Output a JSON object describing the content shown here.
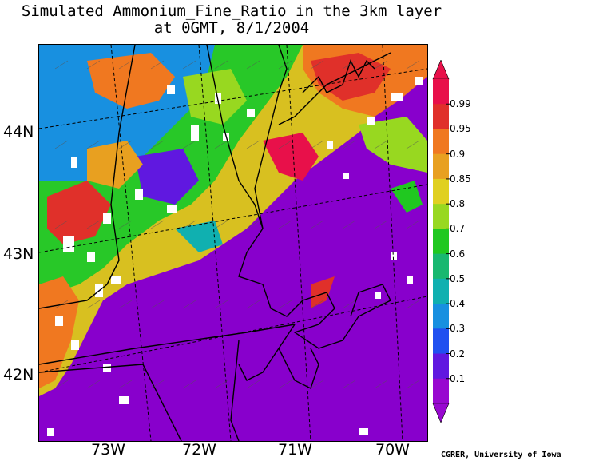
{
  "title": {
    "line1": "Simulated Ammonium_Fine_Ratio in the 3km layer",
    "line2": "at 0GMT, 8/1/2004"
  },
  "map": {
    "latitude_labels": [
      "44N",
      "43N",
      "42N"
    ],
    "longitude_labels": [
      "73W",
      "72W",
      "71W",
      "70W"
    ],
    "background_color": "#8800cc",
    "boundary_color": "#000000",
    "missing_color": "#ffffff"
  },
  "colorbar": {
    "labels": [
      "0.99",
      "0.95",
      "0.9",
      "0.85",
      "0.8",
      "0.7",
      "0.6",
      "0.5",
      "0.4",
      "0.3",
      "0.2",
      "0.1"
    ],
    "colors": [
      "#e8104a",
      "#e0302a",
      "#f07820",
      "#e8a020",
      "#e0d020",
      "#98d820",
      "#20c820",
      "#18b870",
      "#10b0b0",
      "#1890e0",
      "#2050f0",
      "#6018e0",
      "#9808d0"
    ]
  },
  "credit": "CGRER, University of Iowa"
}
